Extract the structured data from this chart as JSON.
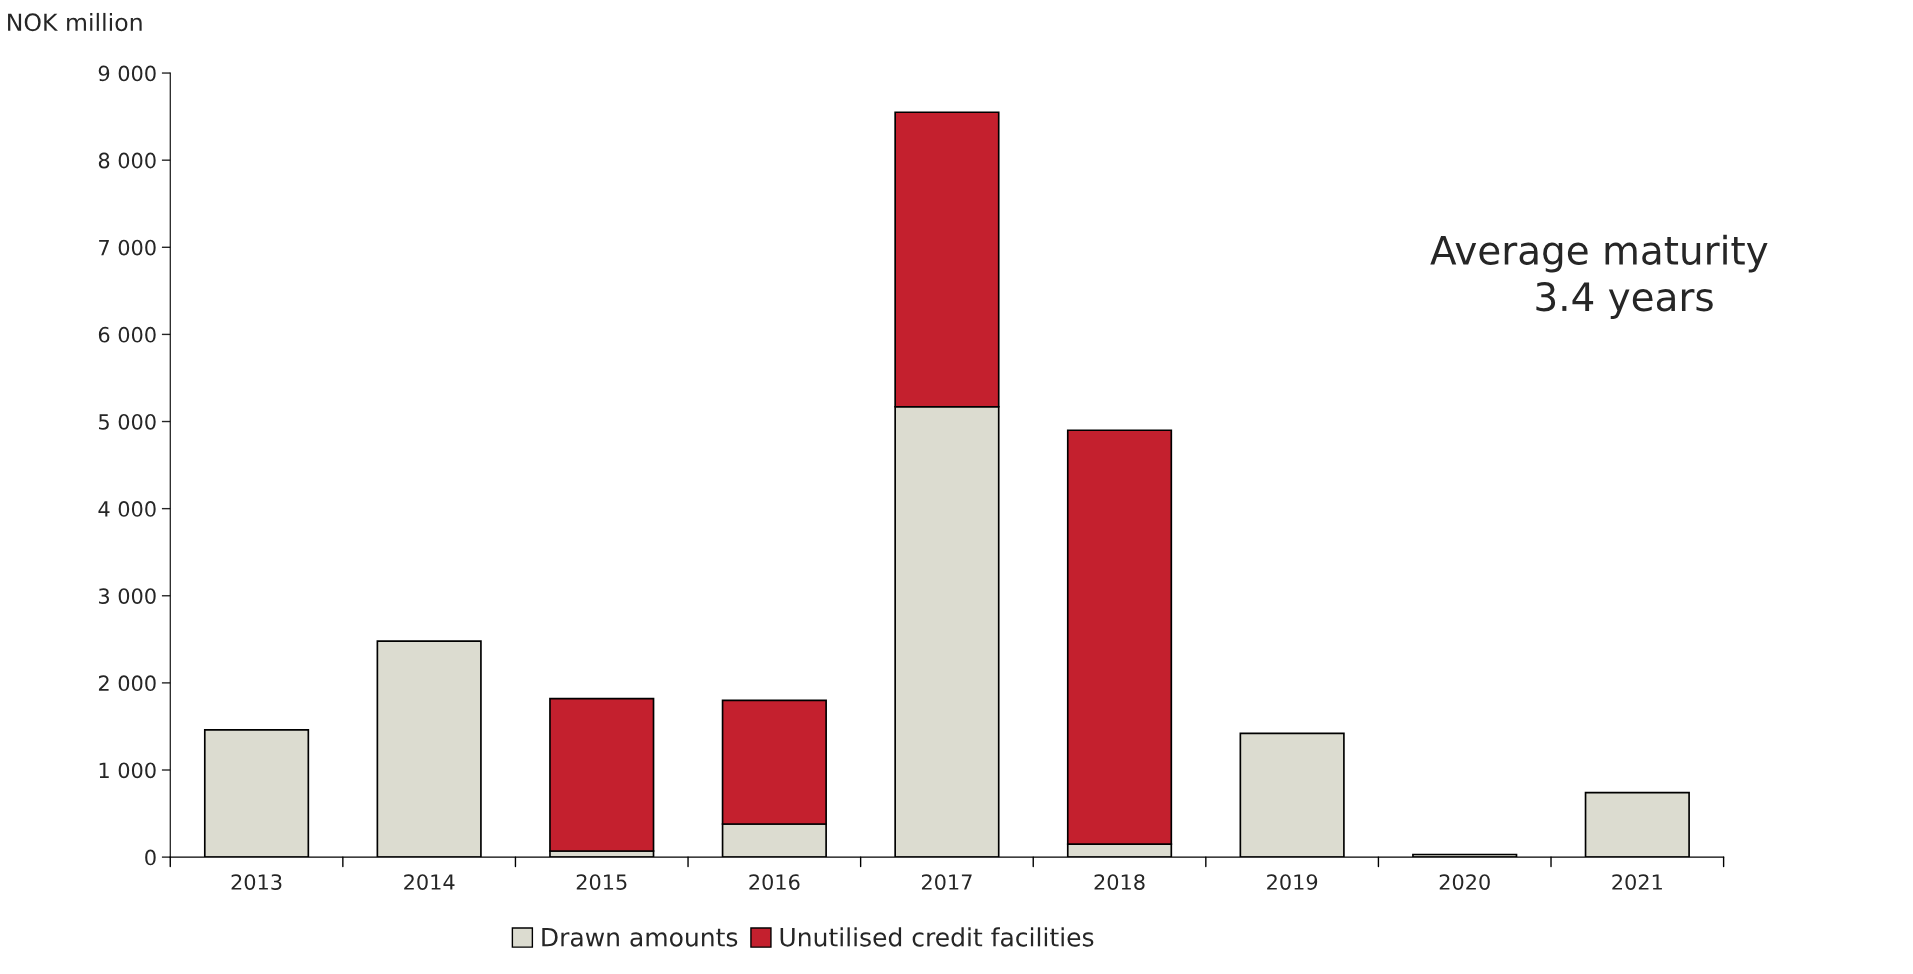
{
  "chart_data": {
    "type": "bar",
    "stacked": true,
    "ylabel": "NOK million",
    "categories": [
      "2013",
      "2014",
      "2015",
      "2016",
      "2017",
      "2018",
      "2019",
      "2020",
      "2021"
    ],
    "series": [
      {
        "name": "Drawn amounts",
        "color": "#dcdcd0",
        "values": [
          1460,
          2480,
          70,
          380,
          5170,
          150,
          1420,
          30,
          740
        ]
      },
      {
        "name": "Unutilised credit facilities",
        "color": "#c4202e",
        "values": [
          null,
          null,
          1750,
          1420,
          3380,
          4750,
          null,
          null,
          null
        ]
      }
    ],
    "ylim": [
      0,
      9000
    ],
    "yticks": [
      0,
      {
        "value": 1000,
        "label": "1 000"
      },
      {
        "value": 2000,
        "label": "2 000"
      },
      {
        "value": 3000,
        "label": "3 000"
      },
      {
        "value": 4000,
        "label": "4 000"
      },
      {
        "value": 5000,
        "label": "5 000"
      },
      {
        "value": 6000,
        "label": "6 000"
      },
      {
        "value": 7000,
        "label": "7 000"
      },
      {
        "value": 8000,
        "label": "8 000"
      },
      {
        "value": 9000,
        "label": "9 000"
      }
    ],
    "annotations": [
      "Average maturity\n    3.4 years"
    ],
    "legend": "bottom",
    "grid": false
  }
}
